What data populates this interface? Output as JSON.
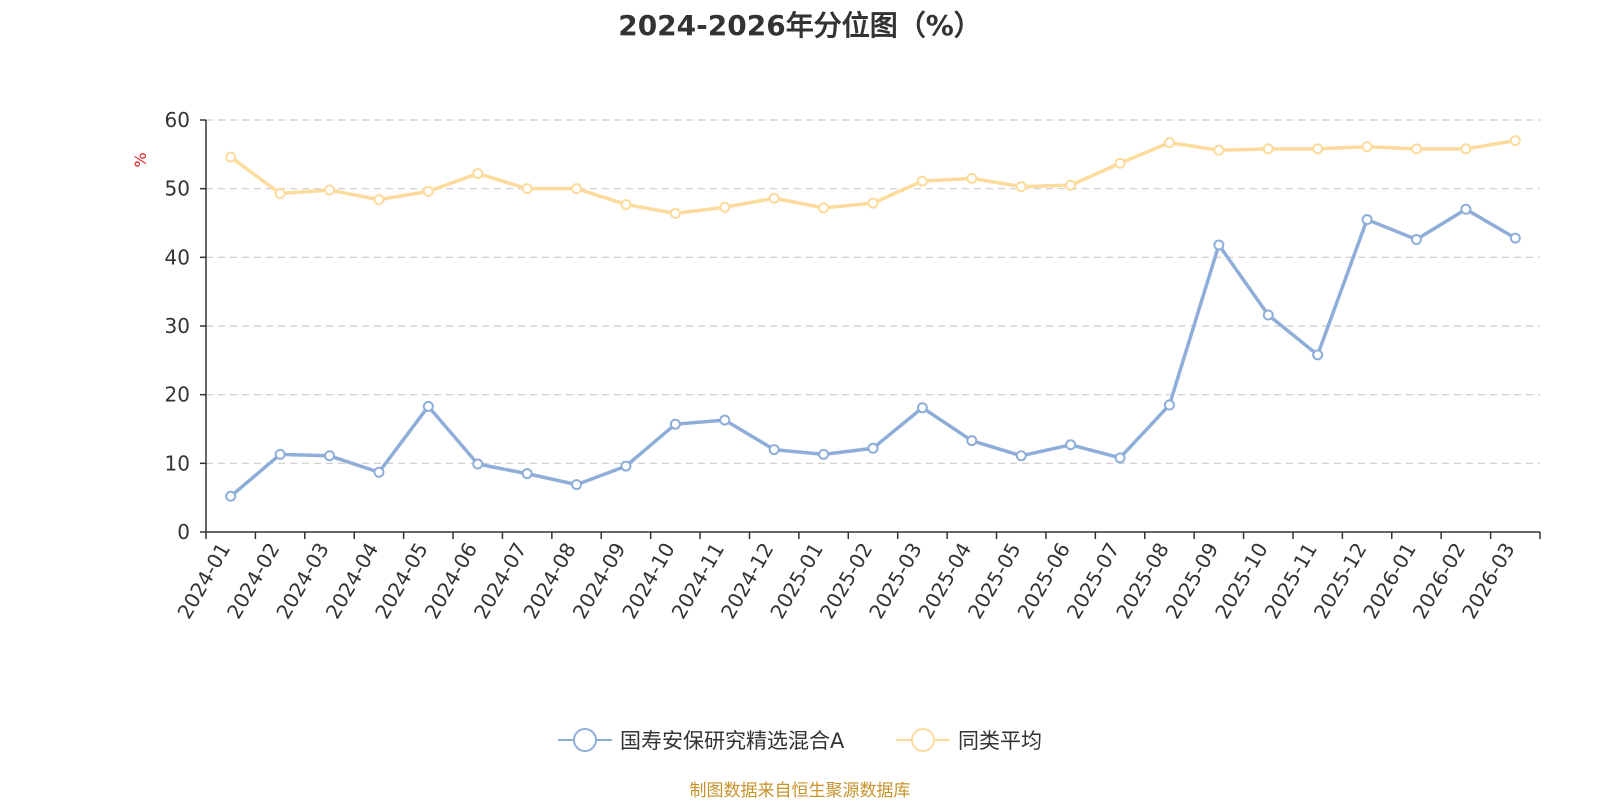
{
  "chart_data": {
    "type": "line",
    "title": "2024-2026年分位图（%）",
    "ylabel": "%",
    "xlabel": "",
    "ylim": [
      0,
      60
    ],
    "yticks": [
      0,
      10,
      20,
      30,
      40,
      50,
      60
    ],
    "grid": true,
    "legend_position": "bottom-center",
    "categories": [
      "2024-01",
      "2024-02",
      "2024-03",
      "2024-04",
      "2024-05",
      "2024-06",
      "2024-07",
      "2024-08",
      "2024-09",
      "2024-10",
      "2024-11",
      "2024-12",
      "2025-01",
      "2025-02",
      "2025-03",
      "2025-04",
      "2025-05",
      "2025-06",
      "2025-07",
      "2025-08",
      "2025-09",
      "2025-10",
      "2025-11",
      "2025-12",
      "2026-01",
      "2026-02",
      "2026-03"
    ],
    "series": [
      {
        "name": "国寿安保研究精选混合A",
        "color": "#8eaed9",
        "values": [
          5.2,
          11.3,
          11.1,
          8.7,
          18.3,
          9.9,
          8.5,
          6.9,
          9.6,
          15.7,
          16.3,
          12.0,
          11.3,
          12.2,
          18.1,
          13.3,
          11.1,
          12.7,
          10.8,
          18.5,
          41.8,
          31.6,
          25.8,
          45.5,
          42.6,
          47.0,
          42.8
        ]
      },
      {
        "name": "同类平均",
        "color": "#fcdb9c",
        "values": [
          54.6,
          49.3,
          49.8,
          48.4,
          49.6,
          52.2,
          50.0,
          50.0,
          47.7,
          46.4,
          47.3,
          48.6,
          47.2,
          47.9,
          51.1,
          51.5,
          50.3,
          50.5,
          53.7,
          56.7,
          55.6,
          55.8,
          55.8,
          56.1,
          55.8,
          55.8,
          57.0
        ]
      }
    ]
  },
  "source_note": "制图数据来自恒生聚源数据库"
}
